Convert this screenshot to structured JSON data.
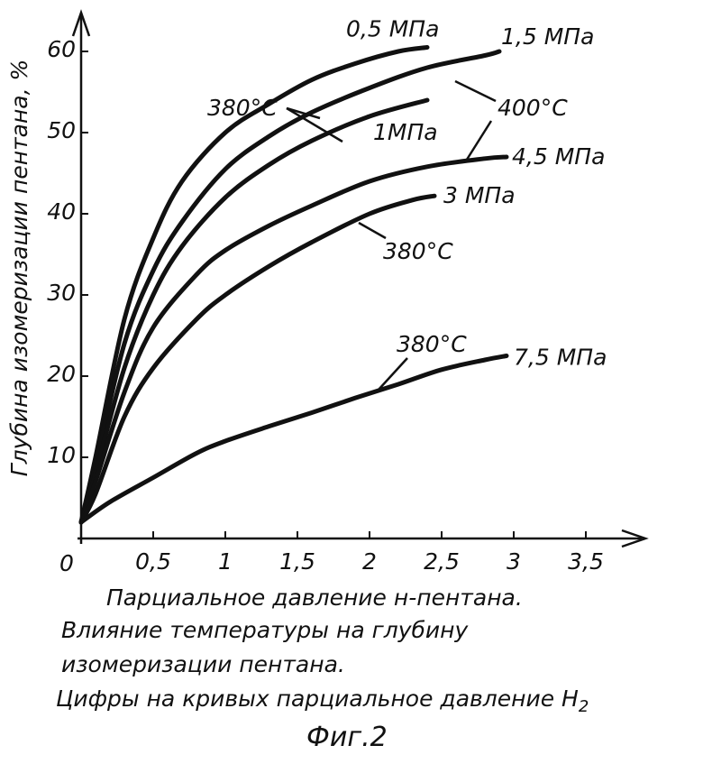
{
  "chart_data": {
    "type": "line",
    "xlabel": "Парциальное давление н-пентана.",
    "ylabel": "Глубина изомеризации пентана, %",
    "xlim": [
      0,
      3.8
    ],
    "ylim": [
      0,
      65
    ],
    "x_ticks": [
      "0,5",
      "1",
      "1,5",
      "2",
      "2,5",
      "3",
      "3,5"
    ],
    "y_ticks": [
      "10",
      "20",
      "30",
      "40",
      "50",
      "60"
    ],
    "origin_label": "0",
    "grid": false,
    "series": [
      {
        "name": "0,5 МПа",
        "color": "#111111",
        "x": [
          0,
          0.1,
          0.3,
          0.5,
          0.7,
          1.0,
          1.3,
          1.6,
          1.9,
          2.2,
          2.4
        ],
        "y": [
          2,
          10,
          27,
          37,
          44,
          50,
          53.5,
          56.5,
          58.5,
          60,
          60.5
        ]
      },
      {
        "name": "1,5 МПа",
        "color": "#111111",
        "x": [
          0,
          0.1,
          0.3,
          0.5,
          0.7,
          1.0,
          1.3,
          1.6,
          2.0,
          2.4,
          2.8,
          2.9
        ],
        "y": [
          2,
          9,
          24,
          33,
          39,
          45.5,
          49.5,
          52.5,
          55.5,
          58,
          59.5,
          60
        ]
      },
      {
        "name": "1МПа",
        "color": "#111111",
        "x": [
          0,
          0.1,
          0.3,
          0.5,
          0.7,
          1.0,
          1.3,
          1.6,
          2.0,
          2.4
        ],
        "y": [
          2,
          8,
          21,
          30,
          36,
          42,
          46,
          49,
          52,
          54
        ]
      },
      {
        "name": "4,5 МПа",
        "color": "#111111",
        "x": [
          0,
          0.1,
          0.3,
          0.5,
          0.8,
          1.0,
          1.3,
          1.6,
          2.0,
          2.4,
          2.8,
          2.95
        ],
        "y": [
          2,
          7,
          18,
          26,
          32.5,
          35.5,
          38.5,
          41,
          44,
          45.8,
          46.8,
          47
        ]
      },
      {
        "name": "3 МПа",
        "color": "#111111",
        "x": [
          0,
          0.1,
          0.3,
          0.5,
          0.8,
          1.0,
          1.3,
          1.6,
          2.0,
          2.3,
          2.45
        ],
        "y": [
          2,
          5.5,
          15,
          21,
          27,
          30,
          33.5,
          36.5,
          40,
          41.7,
          42.2
        ]
      },
      {
        "name": "7,5 МПа",
        "color": "#111111",
        "x": [
          0,
          0.2,
          0.5,
          0.8,
          1.0,
          1.3,
          1.6,
          1.9,
          2.2,
          2.5,
          2.8,
          2.95
        ],
        "y": [
          2,
          4.5,
          7.5,
          10.5,
          12,
          13.8,
          15.5,
          17.3,
          19,
          20.8,
          22,
          22.5
        ]
      }
    ],
    "annotations": [
      {
        "text": "380°C",
        "points_to": [
          "0,5 МПа",
          "1МПа"
        ]
      },
      {
        "text": "400°C",
        "points_to": [
          "1,5 МПа",
          "4,5 МПа"
        ]
      },
      {
        "text": "380°C",
        "points_to": [
          "3 МПа"
        ]
      },
      {
        "text": "380°C",
        "points_to": [
          "7,5 МПа"
        ]
      }
    ]
  },
  "caption": {
    "line1": "Влияние температуры на глубину",
    "line2": "изомеризации пентана.",
    "line3": "Цифры на кривых парциальное давление H",
    "line3_sub": "2"
  },
  "figure_label": "Фиг.2"
}
